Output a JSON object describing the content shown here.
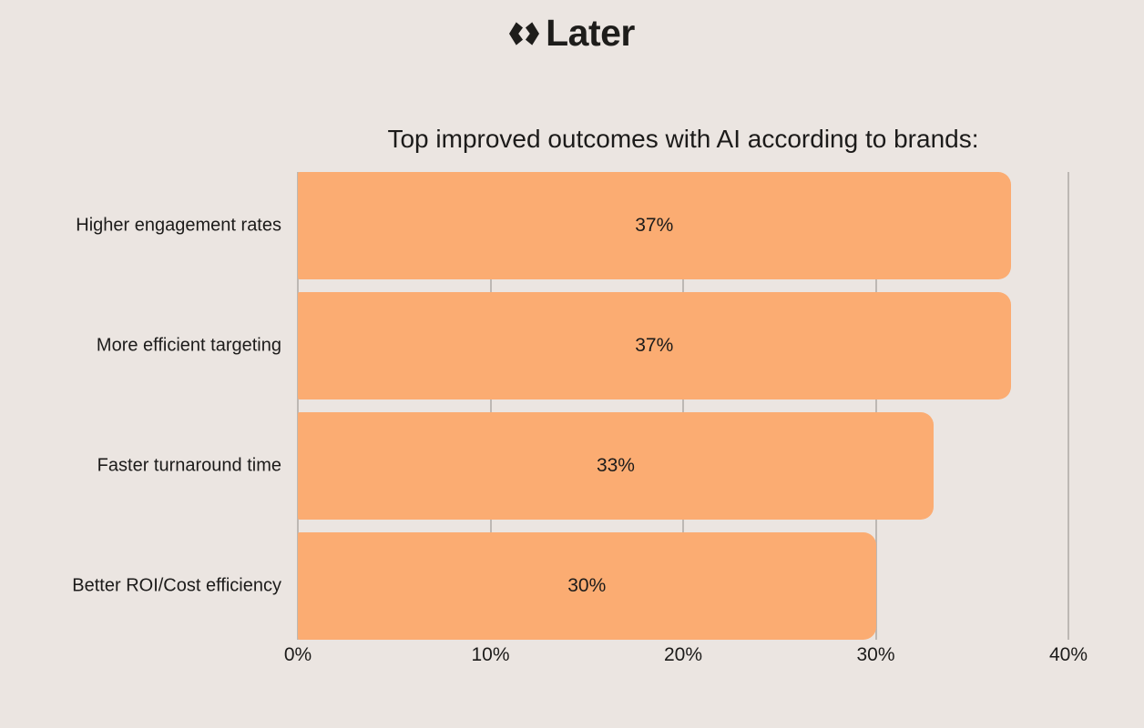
{
  "page": {
    "background": "#EBE5E1",
    "text_color": "#1C1B1A"
  },
  "logo": {
    "text": "Later",
    "icon": "later-diamonds-icon",
    "color": "#1E1D1B"
  },
  "chart_data": {
    "type": "bar",
    "orientation": "horizontal",
    "title": "Top improved outcomes with AI according to brands:",
    "categories": [
      "Higher engagement rates",
      "More efficient targeting",
      "Faster turnaround time",
      "Better ROI/Cost efficiency"
    ],
    "values": [
      37,
      37,
      33,
      30
    ],
    "value_labels": [
      "37%",
      "37%",
      "33%",
      "30%"
    ],
    "xlabel": "",
    "ylabel": "",
    "xlim": [
      0,
      40
    ],
    "x_ticks": [
      "0%",
      "10%",
      "20%",
      "30%",
      "40%"
    ],
    "grid": true,
    "legend": false,
    "bar_color": "#FBAC72",
    "gridline_color": "#BDB8B4"
  }
}
